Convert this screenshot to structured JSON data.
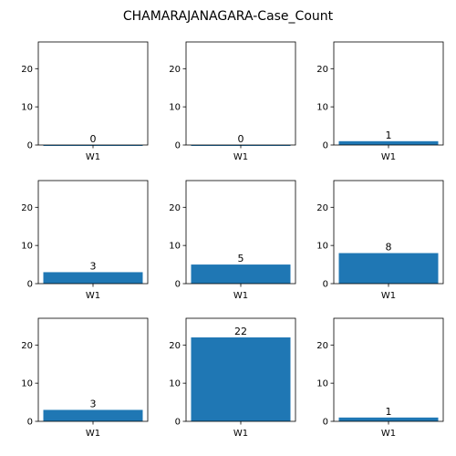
{
  "title": "CHAMARAJANAGARA-Case_Count",
  "bar_color": "#1f77b4",
  "chart_data": [
    {
      "type": "bar",
      "categories": [
        "W1"
      ],
      "values": [
        0
      ],
      "data_labels": [
        "0"
      ],
      "ylim": [
        0,
        27
      ],
      "yticks": [
        0,
        10,
        20
      ],
      "ytick_labels": [
        "0",
        "10",
        "20"
      ]
    },
    {
      "type": "bar",
      "categories": [
        "W1"
      ],
      "values": [
        0
      ],
      "data_labels": [
        "0"
      ],
      "ylim": [
        0,
        27
      ],
      "yticks": [
        0,
        10,
        20
      ],
      "ytick_labels": [
        "0",
        "10",
        "20"
      ]
    },
    {
      "type": "bar",
      "categories": [
        "W1"
      ],
      "values": [
        1
      ],
      "data_labels": [
        "1"
      ],
      "ylim": [
        0,
        27
      ],
      "yticks": [
        0,
        10,
        20
      ],
      "ytick_labels": [
        "0",
        "10",
        "20"
      ]
    },
    {
      "type": "bar",
      "categories": [
        "W1"
      ],
      "values": [
        3
      ],
      "data_labels": [
        "3"
      ],
      "ylim": [
        0,
        27
      ],
      "yticks": [
        0,
        10,
        20
      ],
      "ytick_labels": [
        "0",
        "10",
        "20"
      ]
    },
    {
      "type": "bar",
      "categories": [
        "W1"
      ],
      "values": [
        5
      ],
      "data_labels": [
        "5"
      ],
      "ylim": [
        0,
        27
      ],
      "yticks": [
        0,
        10,
        20
      ],
      "ytick_labels": [
        "0",
        "10",
        "20"
      ]
    },
    {
      "type": "bar",
      "categories": [
        "W1"
      ],
      "values": [
        8
      ],
      "data_labels": [
        "8"
      ],
      "ylim": [
        0,
        27
      ],
      "yticks": [
        0,
        10,
        20
      ],
      "ytick_labels": [
        "0",
        "10",
        "20"
      ]
    },
    {
      "type": "bar",
      "categories": [
        "W1"
      ],
      "values": [
        3
      ],
      "data_labels": [
        "3"
      ],
      "ylim": [
        0,
        27
      ],
      "yticks": [
        0,
        10,
        20
      ],
      "ytick_labels": [
        "0",
        "10",
        "20"
      ]
    },
    {
      "type": "bar",
      "categories": [
        "W1"
      ],
      "values": [
        22
      ],
      "data_labels": [
        "22"
      ],
      "ylim": [
        0,
        27
      ],
      "yticks": [
        0,
        10,
        20
      ],
      "ytick_labels": [
        "0",
        "10",
        "20"
      ]
    },
    {
      "type": "bar",
      "categories": [
        "W1"
      ],
      "values": [
        1
      ],
      "data_labels": [
        "1"
      ],
      "ylim": [
        0,
        27
      ],
      "yticks": [
        0,
        10,
        20
      ],
      "ytick_labels": [
        "0",
        "10",
        "20"
      ]
    }
  ]
}
